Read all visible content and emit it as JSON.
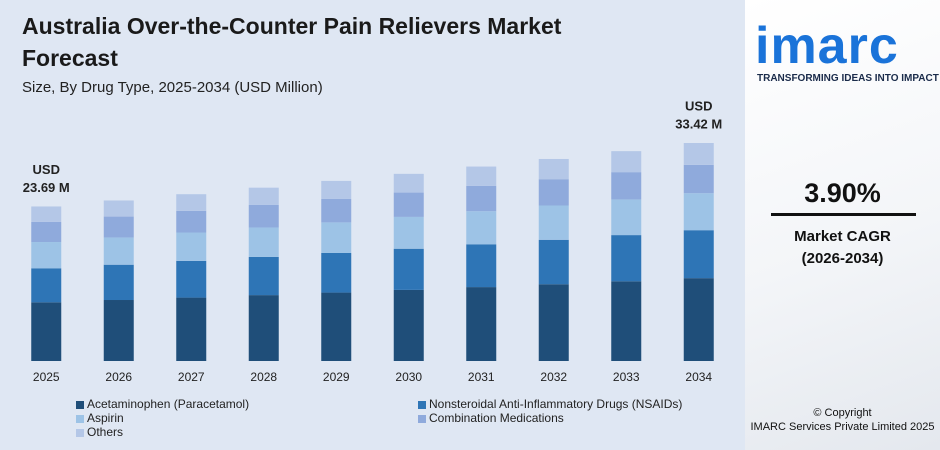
{
  "chart_data": {
    "type": "stacked_bar",
    "title": "Australia Over-the-Counter Pain Relievers Market Forecast",
    "subtitle": "Size, By Drug Type, 2025-2034 (USD Million)",
    "categories": [
      "2025",
      "2026",
      "2027",
      "2028",
      "2029",
      "2030",
      "2031",
      "2032",
      "2033",
      "2034"
    ],
    "series": [
      {
        "name": "Acetaminophen (Paracetamol)",
        "color": "#1f4e79",
        "values": [
          9.0,
          9.35,
          9.72,
          10.1,
          10.49,
          10.9,
          11.33,
          11.77,
          12.22,
          12.7
        ]
      },
      {
        "name": "Nonsteroidal Anti-Inflammatory Drugs (NSAIDs)",
        "color": "#2e75b6",
        "values": [
          5.21,
          5.41,
          5.63,
          5.85,
          6.07,
          6.31,
          6.56,
          6.81,
          7.08,
          7.35
        ]
      },
      {
        "name": "Aspirin",
        "color": "#9dc3e6",
        "values": [
          4.03,
          4.18,
          4.35,
          4.52,
          4.69,
          4.88,
          5.07,
          5.26,
          5.47,
          5.68
        ]
      },
      {
        "name": "Combination Medications",
        "color": "#8faadc",
        "values": [
          3.08,
          3.2,
          3.32,
          3.45,
          3.59,
          3.73,
          3.88,
          4.03,
          4.18,
          4.34
        ]
      },
      {
        "name": "Others",
        "color": "#b4c7e7",
        "values": [
          2.37,
          2.47,
          2.55,
          2.65,
          2.77,
          2.87,
          2.97,
          3.1,
          3.22,
          3.35
        ]
      }
    ],
    "annotations": [
      {
        "category": "2025",
        "label": "USD",
        "value": 23.69,
        "value_label": "23.69 M"
      },
      {
        "category": "2034",
        "label": "USD",
        "value": 33.42,
        "value_label": "33.42 M"
      }
    ]
  },
  "sidebar": {
    "logo": "imarc",
    "tagline": "TRANSFORMING IDEAS INTO IMPACT",
    "cagr": "3.90%",
    "cagr_label": "Market CAGR",
    "cagr_period": "(2026-2034)",
    "copyright": "© Copyright",
    "company": "IMARC Services Private Limited 2025"
  }
}
